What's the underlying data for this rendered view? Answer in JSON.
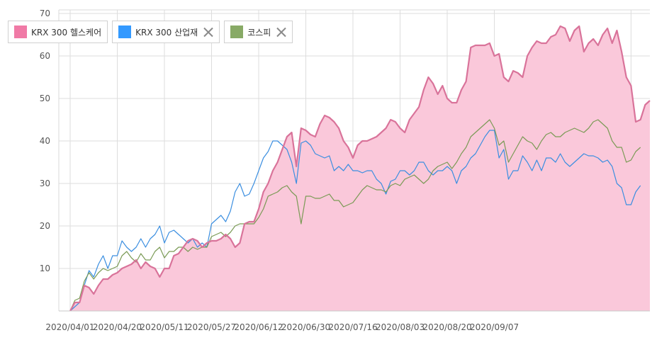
{
  "chart_data": {
    "type": "line",
    "title": "",
    "xlabel": "",
    "ylabel": "",
    "ylim": [
      0,
      70
    ],
    "yticks": [
      10,
      20,
      30,
      40,
      50,
      60,
      70
    ],
    "x_tick_labels": [
      "2020/04/01",
      "2020/04/20",
      "2020/05/11",
      "2020/05/27",
      "2020/06/12",
      "2020/06/30",
      "2020/07/16",
      "2020/08/03",
      "2020/08/20",
      "2020/09/07"
    ],
    "x_tick_index": [
      0,
      10,
      20,
      30,
      40,
      50,
      60,
      70,
      80,
      90
    ],
    "grid": true,
    "legend_position": "top-left",
    "series": [
      {
        "name": "KRX 300 헬스케어",
        "color": "#d9739a",
        "fill": "#fac8da",
        "values": [
          0,
          2,
          2,
          6,
          5.5,
          4,
          6,
          7.5,
          7.5,
          8.5,
          9,
          10,
          10.5,
          11,
          12,
          10,
          11.5,
          10.5,
          10,
          8,
          10,
          10,
          13,
          13.5,
          15,
          16.5,
          17,
          16.5,
          15,
          16,
          16.5,
          16.5,
          17,
          18,
          17,
          15,
          16,
          20.5,
          21,
          21,
          24,
          28,
          30,
          33,
          35,
          38,
          41,
          42,
          34,
          43,
          42.5,
          41.5,
          41,
          44,
          46,
          45.5,
          44.5,
          43,
          40,
          38.5,
          36,
          39,
          40,
          40,
          40.5,
          41,
          42,
          43,
          45,
          44.5,
          43,
          42,
          45,
          46.5,
          48,
          52,
          55,
          53.5,
          51,
          53,
          50,
          49,
          49,
          52,
          54,
          62,
          62.5,
          62.5,
          62.5,
          63,
          60,
          60.5,
          55,
          54,
          56.5,
          56,
          55,
          60,
          62,
          63.5,
          63,
          63,
          64.5,
          65,
          67,
          66.5,
          63.5,
          66,
          67,
          61,
          63,
          64,
          62.5,
          65,
          66.5,
          63,
          66,
          61,
          55,
          53,
          44.5,
          45,
          48.5,
          49.5
        ]
      },
      {
        "name": "KRX 300 산업재",
        "color": "#3a8ee0",
        "values": [
          0,
          1,
          2,
          6,
          9.5,
          8,
          11,
          13,
          10,
          13,
          13,
          16.5,
          15,
          14,
          15,
          17,
          15,
          17,
          18,
          20,
          16,
          18.5,
          19,
          18,
          17,
          16,
          17,
          15,
          16,
          15,
          20.5,
          21.5,
          22.5,
          21,
          23.5,
          28,
          30,
          27,
          27.5,
          30,
          33,
          36,
          37.5,
          40,
          40,
          39,
          38,
          35,
          30,
          39.5,
          40,
          39,
          37,
          36.5,
          36,
          36.5,
          33,
          34,
          33,
          34.5,
          33,
          33,
          32.5,
          33,
          33,
          31,
          30,
          27.5,
          30.5,
          31,
          33,
          33,
          32,
          33,
          35,
          35,
          33,
          32,
          33,
          33,
          34,
          33,
          30,
          33,
          34,
          36,
          37,
          39,
          41,
          42.5,
          42.5,
          36,
          38,
          31,
          33,
          33,
          36.5,
          35,
          33,
          35.5,
          33,
          36,
          36,
          35,
          37,
          35,
          34,
          35,
          36,
          37,
          36.5,
          36.5,
          36,
          35,
          35.5,
          34,
          30,
          29,
          25,
          25,
          28,
          29.5
        ]
      },
      {
        "name": "코스피",
        "color": "#7a9a55",
        "values": [
          0,
          2.5,
          3,
          7,
          9,
          7.5,
          9,
          10,
          9.5,
          10,
          10.5,
          13,
          14,
          12.5,
          11.5,
          13.5,
          12,
          12,
          14,
          15,
          12.5,
          14,
          14,
          15,
          15,
          14,
          15,
          14.5,
          15,
          15,
          17.5,
          18,
          18.5,
          17.5,
          18.5,
          20,
          20.5,
          20.5,
          20.5,
          20.5,
          22,
          24,
          27,
          27.5,
          28,
          29,
          29.5,
          28,
          27,
          20.5,
          27,
          27,
          26.5,
          26.5,
          27,
          27.5,
          26,
          26,
          24.5,
          25,
          25.5,
          27,
          28.5,
          29.5,
          29,
          28.5,
          28.5,
          28,
          29.5,
          30,
          29.5,
          31,
          31.5,
          32,
          31,
          30,
          31,
          33,
          34,
          34.5,
          35,
          33.5,
          35,
          37,
          38.5,
          41,
          42,
          43,
          44,
          45,
          43,
          39,
          40,
          35,
          37,
          39,
          41,
          40,
          39.5,
          38,
          40,
          41.5,
          42,
          41,
          41,
          42,
          42.5,
          43,
          42.5,
          42,
          43,
          44.5,
          45,
          44,
          43,
          40,
          38.5,
          38.5,
          35,
          35.5,
          37.5,
          38.5
        ]
      }
    ]
  },
  "legend": {
    "items": [
      {
        "label": "KRX 300 헬스케어",
        "color": "#f07aa6"
      },
      {
        "label": "KRX 300 산업재",
        "color": "#3399ff"
      },
      {
        "label": "코스피",
        "color": "#88aa66"
      }
    ]
  }
}
